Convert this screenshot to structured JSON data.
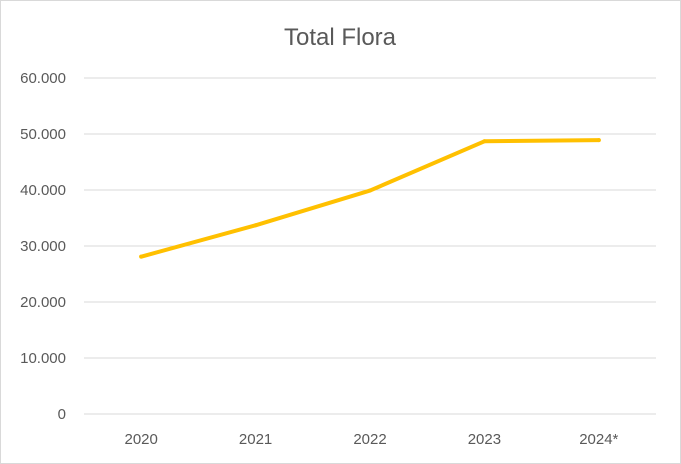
{
  "chart_data": {
    "type": "line",
    "title": "Total Flora",
    "xlabel": "",
    "ylabel": "",
    "categories": [
      "2020",
      "2021",
      "2022",
      "2023",
      "2024*"
    ],
    "series": [
      {
        "values": [
          28100,
          33700,
          39900,
          48700,
          48900
        ],
        "color": "#FFC000"
      }
    ],
    "ylim": [
      0,
      60000
    ],
    "yticks": [
      0,
      10000,
      20000,
      30000,
      40000,
      50000,
      60000
    ],
    "ytick_labels": [
      "0",
      "10.000",
      "20.000",
      "30.000",
      "40.000",
      "50.000",
      "60.000"
    ],
    "grid": true,
    "legend": "none"
  }
}
